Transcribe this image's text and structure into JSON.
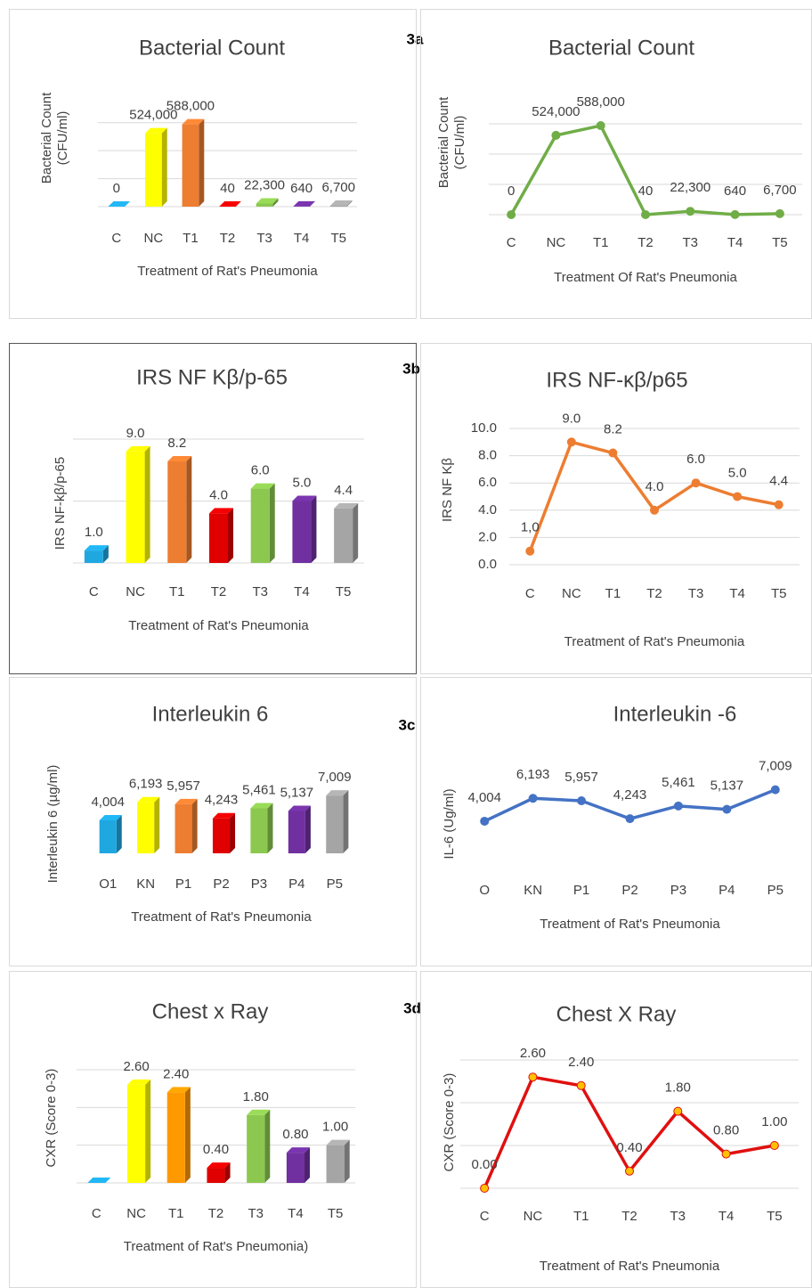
{
  "panel_labels": [
    "3a",
    "3b",
    "3c",
    "3d"
  ],
  "chart_data": [
    {
      "type": "bar",
      "title": "Bacterial Count",
      "ylabel": [
        "Bacterial Count",
        "(CFU/ml)"
      ],
      "xlabel": "Treatment of Rat's Pneumonia",
      "categories": [
        "C",
        "NC",
        "T1",
        "T2",
        "T3",
        "T4",
        "T5"
      ],
      "values": [
        0,
        524000,
        588000,
        40,
        22300,
        640,
        6700
      ],
      "value_labels": [
        "0",
        "524,000",
        "588,000",
        "40",
        "22,300",
        "640",
        "6,700"
      ],
      "colors": [
        "#1fa7e0",
        "#ffff00",
        "#ed7d31",
        "#e00000",
        "#8cc850",
        "#7030a0",
        "#a5a5a5"
      ],
      "ylim": [
        0,
        700000
      ],
      "yticks": [
        0,
        200000,
        400000,
        600000
      ],
      "tick_labels": false,
      "grid": true
    },
    {
      "type": "line",
      "title": "Bacterial Count",
      "ylabel": [
        "Bacterial Count",
        "(CFU/ml)"
      ],
      "xlabel": "Treatment Of Rat's Pneumonia",
      "categories": [
        "C",
        "NC",
        "T1",
        "T2",
        "T3",
        "T4",
        "T5"
      ],
      "values": [
        0,
        524000,
        588000,
        40,
        22300,
        640,
        6700
      ],
      "value_labels": [
        "0",
        "524,000",
        "588,000",
        "40",
        "22,300",
        "640",
        "6,700"
      ],
      "color": "#70ad47",
      "marker_color": "#70ad47",
      "ylim": [
        0,
        700000
      ],
      "yticks": [
        0,
        200000,
        400000,
        600000
      ],
      "tick_labels": false,
      "grid": true
    },
    {
      "type": "bar",
      "title": "IRS NF Kβ/p-65",
      "ylabel": [
        "IRS NF-kβ/p-65"
      ],
      "xlabel": "Treatment of Rat's Pneumonia",
      "categories": [
        "C",
        "NC",
        "T1",
        "T2",
        "T3",
        "T4",
        "T5"
      ],
      "values": [
        1.0,
        9.0,
        8.2,
        4.0,
        6.0,
        5.0,
        4.4
      ],
      "value_labels": [
        "1.0",
        "9.0",
        "8.2",
        "4.0",
        "6.0",
        "5.0",
        "4.4"
      ],
      "colors": [
        "#1fa7e0",
        "#ffff00",
        "#ed7d31",
        "#e00000",
        "#8cc850",
        "#7030a0",
        "#a5a5a5"
      ],
      "ylim": [
        0,
        10
      ],
      "yticks": [
        0,
        5,
        10
      ],
      "tick_labels": false,
      "grid": true
    },
    {
      "type": "line",
      "title": "IRS NF-κβ/p65",
      "ylabel": [
        "IRS NF Kβ"
      ],
      "xlabel": "Treatment of Rat's Pneumonia",
      "categories": [
        "C",
        "NC",
        "T1",
        "T2",
        "T3",
        "T4",
        "T5"
      ],
      "values": [
        1.0,
        9.0,
        8.2,
        4.0,
        6.0,
        5.0,
        4.4
      ],
      "value_labels": [
        "1,0",
        "9.0",
        "8.2",
        "4.0",
        "6.0",
        "5.0",
        "4.4"
      ],
      "color": "#ed7d31",
      "marker_color": "#ed7d31",
      "ylim": [
        0,
        10
      ],
      "yticks": [
        {
          "value": 0,
          "label": "0.0"
        },
        {
          "value": 2,
          "label": "2.0"
        },
        {
          "value": 4,
          "label": "4.0"
        },
        {
          "value": 6,
          "label": "6.0"
        },
        {
          "value": 8,
          "label": "8.0"
        },
        {
          "value": 10,
          "label": "10.0"
        }
      ],
      "tick_labels": true,
      "grid": true
    },
    {
      "type": "bar",
      "title": "Interleukin 6",
      "ylabel": [
        "Interleukin 6 (µg/ml)"
      ],
      "xlabel": "Treatment of Rat's Pneumonia",
      "categories": [
        "O1",
        "KN",
        "P1",
        "P2",
        "P3",
        "P4",
        "P5"
      ],
      "values": [
        4004,
        6193,
        5957,
        4243,
        5461,
        5137,
        7009
      ],
      "value_labels": [
        "4,004",
        "6,193",
        "5,957",
        "4,243",
        "5,461",
        "5,137",
        "7,009"
      ],
      "colors": [
        "#1fa7e0",
        "#ffff00",
        "#ed7d31",
        "#e00000",
        "#8cc850",
        "#7030a0",
        "#a5a5a5"
      ],
      "ylim": [
        0,
        8000
      ]
    },
    {
      "type": "line",
      "title": "Interleukin -6",
      "ylabel": [
        "IL-6 (Ug/ml)"
      ],
      "xlabel": "Treatment of Rat's Pneumonia",
      "categories": [
        "O",
        "KN",
        "P1",
        "P2",
        "P3",
        "P4",
        "P5"
      ],
      "values": [
        4004,
        6193,
        5957,
        4243,
        5461,
        5137,
        7009
      ],
      "value_labels": [
        "4,004",
        "6,193",
        "5,957",
        "4,243",
        "5,461",
        "5,137",
        "7,009"
      ],
      "color": "#4472c4",
      "marker_color": "#4472c4",
      "ylim": [
        0,
        8000
      ]
    },
    {
      "type": "bar",
      "title": "Chest x Ray",
      "ylabel": [
        "CXR (Score 0-3)"
      ],
      "xlabel": "Treatment of Rat's Pneumonia)",
      "categories": [
        "C",
        "NC",
        "T1",
        "T2",
        "T3",
        "T4",
        "T5"
      ],
      "values": [
        0,
        2.6,
        2.4,
        0.4,
        1.8,
        0.8,
        1.0
      ],
      "value_labels": [
        null,
        "2.60",
        "2.40",
        "0.40",
        "1.80",
        "0.80",
        "1.00"
      ],
      "colors": [
        "#1fa7e0",
        "#ffff00",
        "#ff9900",
        "#e00000",
        "#8cc850",
        "#7030a0",
        "#a5a5a5"
      ],
      "ylim": [
        0,
        3
      ],
      "yticks": [
        0,
        1,
        2,
        3
      ],
      "tick_labels": false,
      "grid": true
    },
    {
      "type": "line",
      "title": "Chest X Ray",
      "ylabel": [
        "CXR (Score 0-3)"
      ],
      "xlabel": "Treatment of Rat's Pneumonia",
      "categories": [
        "C",
        "NC",
        "T1",
        "T2",
        "T3",
        "T4",
        "T5"
      ],
      "values": [
        0,
        2.6,
        2.4,
        0.4,
        1.8,
        0.8,
        1.0
      ],
      "value_labels": [
        "0.00",
        "2.60",
        "2.40",
        "0.40",
        "1.80",
        "0.80",
        "1.00"
      ],
      "color": "#e01010",
      "marker_color": "#ffc000",
      "ylim": [
        0,
        3
      ],
      "yticks": [
        0,
        1,
        2,
        3
      ],
      "tick_labels": false,
      "grid": true
    }
  ]
}
